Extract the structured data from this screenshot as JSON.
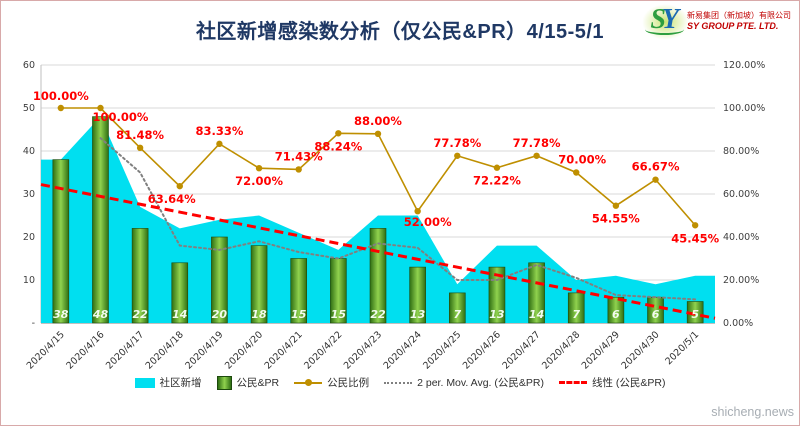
{
  "header": {
    "title": "社区新增感染数分析（仅公民&PR）4/15-5/1",
    "logo": {
      "mark_s": "S",
      "mark_y": "Y",
      "line1": "新易集团（新加坡）有限公司",
      "line2": "SY GROUP PTE. LTD."
    }
  },
  "watermark": "shicheng.news",
  "chart_data": {
    "type": "combo",
    "title": "社区新增感染数分析（仅公民&PR）4/15-5/1",
    "categories": [
      "2020/4/15",
      "2020/4/16",
      "2020/4/17",
      "2020/4/18",
      "2020/4/19",
      "2020/4/20",
      "2020/4/21",
      "2020/4/22",
      "2020/4/23",
      "2020/4/24",
      "2020/4/25",
      "2020/4/26",
      "2020/4/27",
      "2020/4/28",
      "2020/4/29",
      "2020/4/30",
      "2020/5/1"
    ],
    "series": [
      {
        "name": "社区新增",
        "type": "area",
        "axis": "left",
        "color": "#00dff0",
        "values": [
          38,
          48,
          27,
          22,
          24,
          25,
          21,
          17,
          25,
          25,
          9,
          18,
          18,
          10,
          11,
          9,
          11
        ]
      },
      {
        "name": "公民&PR",
        "type": "bar",
        "axis": "left",
        "color": "#4e9a28",
        "values": [
          38,
          48,
          22,
          14,
          20,
          18,
          15,
          15,
          22,
          13,
          7,
          13,
          14,
          7,
          6,
          6,
          5
        ]
      },
      {
        "name": "公民比例",
        "type": "line",
        "axis": "right",
        "color": "#bf8f00",
        "values": [
          100,
          100,
          81.48,
          63.64,
          83.33,
          72,
          71.43,
          88.24,
          88,
          52,
          77.78,
          72.22,
          77.78,
          70,
          54.55,
          66.67,
          45.45
        ],
        "labels": [
          "100.00%",
          "100.00%",
          "81.48%",
          "63.64%",
          "83.33%",
          "72.00%",
          "71.43%",
          "88.24%",
          "88.00%",
          "52.00%",
          "77.78%",
          "72.22%",
          "77.78%",
          "70.00%",
          "54.55%",
          "66.67%",
          "45.45%"
        ]
      },
      {
        "name": "2 per. Mov. Avg. (公民&PR)",
        "type": "moving-average",
        "period": 2,
        "axis": "left",
        "color": "#808080"
      },
      {
        "name": "线性 (公民&PR)",
        "type": "linear-trend",
        "axis": "left",
        "color": "#ff0000"
      }
    ],
    "left_axis": {
      "min": 0,
      "max": 60,
      "ticks": [
        "60",
        "50",
        "40",
        "30",
        "20",
        "10",
        "-"
      ]
    },
    "right_axis": {
      "min": 0,
      "max": 120,
      "ticks": [
        "120.00%",
        "100.00%",
        "80.00%",
        "60.00%",
        "40.00%",
        "20.00%",
        "0.00%"
      ]
    },
    "grid": true,
    "legend_position": "bottom"
  }
}
